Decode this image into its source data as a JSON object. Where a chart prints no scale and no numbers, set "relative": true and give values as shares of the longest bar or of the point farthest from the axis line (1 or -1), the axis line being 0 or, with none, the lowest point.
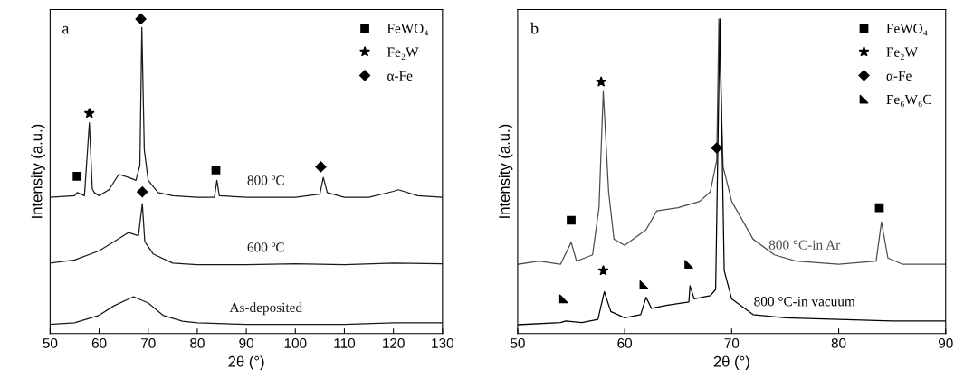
{
  "chart_data": [
    {
      "type": "line",
      "relative": true,
      "xlabel": "2θ (°)",
      "ylabel": "Intensity (a.u.)",
      "xlim": [
        50,
        130
      ],
      "xticks": [
        50,
        60,
        70,
        80,
        90,
        100,
        110,
        120,
        130
      ],
      "tick_labels": "x",
      "legend": "top right",
      "grid": false,
      "annotations": [
        "a"
      ],
      "series": [
        {
          "name": "800 ºC",
          "color": "#1a1a1a",
          "x": [
            50,
            55,
            55.5,
            57,
            58,
            58.6,
            59,
            60,
            62,
            64,
            66,
            67.5,
            68.3,
            68.7,
            69.2,
            70,
            72,
            75,
            80,
            83.5,
            84,
            84.5,
            90,
            100,
            105,
            105.7,
            106.5,
            110,
            115,
            120,
            121,
            125,
            130
          ],
          "values": [
            0.433,
            0.438,
            0.448,
            0.438,
            0.67,
            0.46,
            0.448,
            0.438,
            0.457,
            0.506,
            0.496,
            0.487,
            0.535,
            0.973,
            0.584,
            0.487,
            0.448,
            0.438,
            0.433,
            0.433,
            0.487,
            0.438,
            0.433,
            0.433,
            0.443,
            0.496,
            0.448,
            0.433,
            0.433,
            0.452,
            0.457,
            0.438,
            0.433
          ]
        },
        {
          "name": "600 ºC",
          "color": "#1a1a1a",
          "x": [
            50,
            55,
            60,
            63,
            66,
            68,
            68.8,
            69.3,
            71,
            75,
            80,
            90,
            100,
            110,
            120,
            130
          ],
          "values": [
            0.224,
            0.234,
            0.263,
            0.292,
            0.321,
            0.311,
            0.413,
            0.292,
            0.253,
            0.224,
            0.219,
            0.219,
            0.222,
            0.219,
            0.224,
            0.222
          ]
        },
        {
          "name": "As-deposited",
          "color": "#1a1a1a",
          "x": [
            50,
            55,
            60,
            63,
            67,
            70,
            73,
            77,
            80,
            90,
            100,
            110,
            120,
            130
          ],
          "values": [
            0.029,
            0.034,
            0.058,
            0.088,
            0.117,
            0.097,
            0.058,
            0.039,
            0.034,
            0.029,
            0.029,
            0.029,
            0.034,
            0.034
          ]
        },
        {
          "type": "scatter",
          "name": "FeWO₄",
          "marker": "square",
          "color": "#000000",
          "x": [
            55.5,
            83.8
          ],
          "values": [
            0.5,
            0.52
          ]
        },
        {
          "type": "scatter",
          "name": "Fe₂W",
          "marker": "star",
          "color": "#000000",
          "x": [
            58
          ],
          "values": [
            0.7
          ]
        },
        {
          "type": "scatter",
          "name": "α-Fe",
          "marker": "diamond",
          "color": "#000000",
          "x": [
            68.5,
            68.8,
            105.2
          ],
          "values": [
            1.0,
            0.45,
            0.53
          ]
        }
      ]
    },
    {
      "type": "line",
      "relative": true,
      "xlabel": "2θ (°)",
      "ylabel": "Intensity (a.u.)",
      "xlim": [
        50,
        90
      ],
      "xticks": [
        50,
        60,
        70,
        80,
        90
      ],
      "tick_labels": "x",
      "legend": "top right",
      "grid": false,
      "annotations": [
        "b"
      ],
      "series": [
        {
          "name": "800 °C-in Ar",
          "color": "#4d4d4d",
          "x": [
            50,
            52,
            54,
            55,
            55.5,
            57,
            57.6,
            58,
            58.5,
            59,
            60,
            62,
            63,
            65,
            67,
            68,
            68.6,
            68.8,
            69.2,
            70,
            72,
            74,
            76,
            80,
            83.5,
            84,
            84.6,
            86,
            90
          ],
          "values": [
            0.22,
            0.23,
            0.22,
            0.29,
            0.23,
            0.25,
            0.4,
            0.77,
            0.45,
            0.3,
            0.28,
            0.33,
            0.39,
            0.4,
            0.42,
            0.45,
            0.55,
            1.0,
            0.53,
            0.42,
            0.3,
            0.25,
            0.23,
            0.22,
            0.23,
            0.355,
            0.24,
            0.22,
            0.22
          ]
        },
        {
          "name": "800 °C-in vacuum",
          "color": "#000000",
          "x": [
            50,
            54,
            54.5,
            56,
            57.5,
            58.1,
            58.7,
            60,
            61.5,
            62,
            62.5,
            64,
            66,
            66.1,
            66.5,
            68,
            68.5,
            68.9,
            69.3,
            70,
            72,
            75,
            80,
            85,
            90
          ],
          "values": [
            0.028,
            0.035,
            0.04,
            0.035,
            0.045,
            0.133,
            0.07,
            0.05,
            0.06,
            0.115,
            0.08,
            0.09,
            0.1,
            0.152,
            0.11,
            0.12,
            0.14,
            1.0,
            0.2,
            0.11,
            0.06,
            0.05,
            0.045,
            0.04,
            0.04
          ]
        },
        {
          "type": "scatter",
          "name": "FeWO₄",
          "marker": "square",
          "color": "#000000",
          "x": [
            55,
            83.8
          ],
          "values": [
            0.36,
            0.4
          ]
        },
        {
          "type": "scatter",
          "name": "Fe₂W",
          "marker": "star",
          "color": "#000000",
          "x": [
            57.8,
            58
          ],
          "values": [
            0.8,
            0.2
          ]
        },
        {
          "type": "scatter",
          "name": "α-Fe",
          "marker": "diamond",
          "color": "#000000",
          "x": [
            68.6
          ],
          "values": [
            0.59
          ]
        },
        {
          "type": "scatter",
          "name": "Fe₆W₆C",
          "marker": "triangle",
          "color": "#000000",
          "x": [
            54.3,
            61.8,
            66
          ],
          "values": [
            0.11,
            0.155,
            0.22
          ]
        }
      ]
    }
  ]
}
